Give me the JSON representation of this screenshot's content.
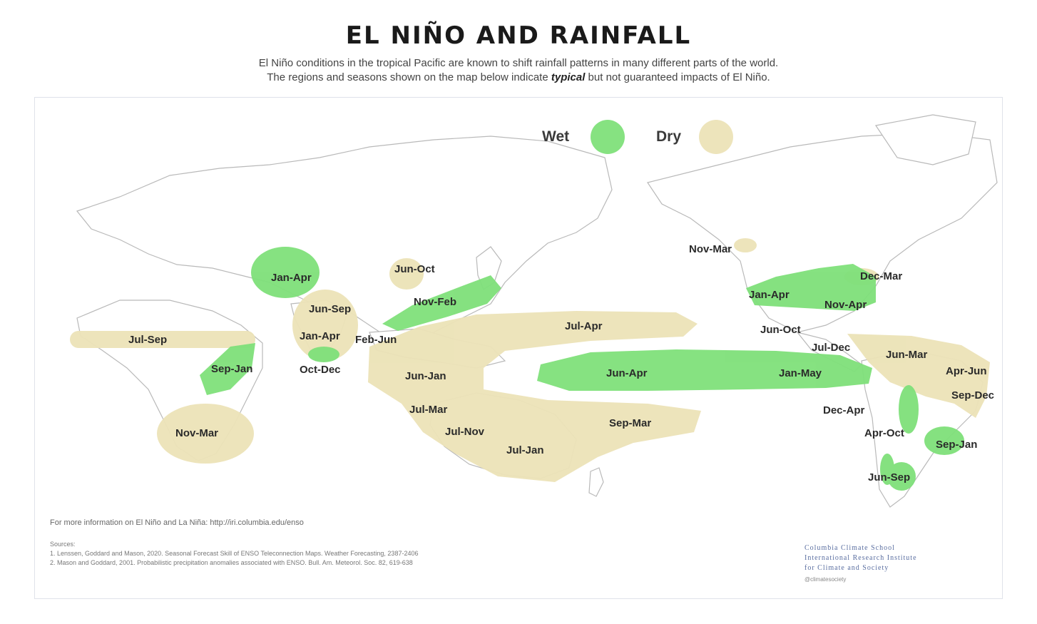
{
  "title": "EL NIÑO AND RAINFALL",
  "subtitle_line1": "El Niño conditions in the tropical Pacific are known to shift rainfall patterns in many different parts of the world.",
  "subtitle_line2_pre": "The regions and seasons shown on the map below indicate ",
  "subtitle_line2_emph": "typical",
  "subtitle_line2_post": " but not guaranteed impacts of El Niño.",
  "legend": {
    "wet_label": "Wet",
    "dry_label": "Dry",
    "wet_color": "#7fe07a",
    "dry_color": "#ece3b7"
  },
  "regions": [
    {
      "label": "Jan-Apr",
      "type": "wet"
    },
    {
      "label": "Jun-Oct",
      "type": "dry"
    },
    {
      "label": "Nov-Feb",
      "type": "wet"
    },
    {
      "label": "Jun-Sep",
      "type": "dry"
    },
    {
      "label": "Jan-Apr",
      "type": "dry"
    },
    {
      "label": "Oct-Dec",
      "type": "wet"
    },
    {
      "label": "Feb-Jun",
      "type": "dry"
    },
    {
      "label": "Jul-Sep",
      "type": "dry"
    },
    {
      "label": "Sep-Jan",
      "type": "wet"
    },
    {
      "label": "Nov-Mar",
      "type": "dry"
    },
    {
      "label": "Jul-Apr",
      "type": "dry"
    },
    {
      "label": "Jun-Jan",
      "type": "dry"
    },
    {
      "label": "Jul-Mar",
      "type": "dry"
    },
    {
      "label": "Jul-Nov",
      "type": "dry"
    },
    {
      "label": "Jul-Jan",
      "type": "dry"
    },
    {
      "label": "Sep-Mar",
      "type": "dry"
    },
    {
      "label": "Jun-Apr",
      "type": "wet"
    },
    {
      "label": "Jan-May",
      "type": "wet"
    },
    {
      "label": "Nov-Mar",
      "type": "dry"
    },
    {
      "label": "Dec-Mar",
      "type": "dry"
    },
    {
      "label": "Jan-Apr",
      "type": "wet"
    },
    {
      "label": "Nov-Apr",
      "type": "wet"
    },
    {
      "label": "Jun-Oct",
      "type": "dry"
    },
    {
      "label": "Jul-Dec",
      "type": "dry"
    },
    {
      "label": "Jun-Mar",
      "type": "dry"
    },
    {
      "label": "Apr-Jun",
      "type": "dry"
    },
    {
      "label": "Sep-Dec",
      "type": "dry"
    },
    {
      "label": "Dec-Apr",
      "type": "dry"
    },
    {
      "label": "Apr-Oct",
      "type": "wet"
    },
    {
      "label": "Sep-Jan",
      "type": "wet"
    },
    {
      "label": "Jun-Sep",
      "type": "wet"
    }
  ],
  "more_info": "For more information on El Niño and La Niña: http://iri.columbia.edu/enso",
  "sources_header": "Sources:",
  "source1": "1. Lenssen, Goddard and Mason, 2020. Seasonal Forecast Skill of ENSO Teleconnection Maps. Weather Forecasting, 2387-2406",
  "source2": "2. Mason and Goddard, 2001. Probabilistic precipitation anomalies associated with ENSO. Bull. Am. Meteorol. Soc. 82, 619-638",
  "logo_line1": "Columbia Climate School",
  "logo_line2": "International Research Institute",
  "logo_line3": "for Climate and Society",
  "social_handle": "@climatesociety"
}
